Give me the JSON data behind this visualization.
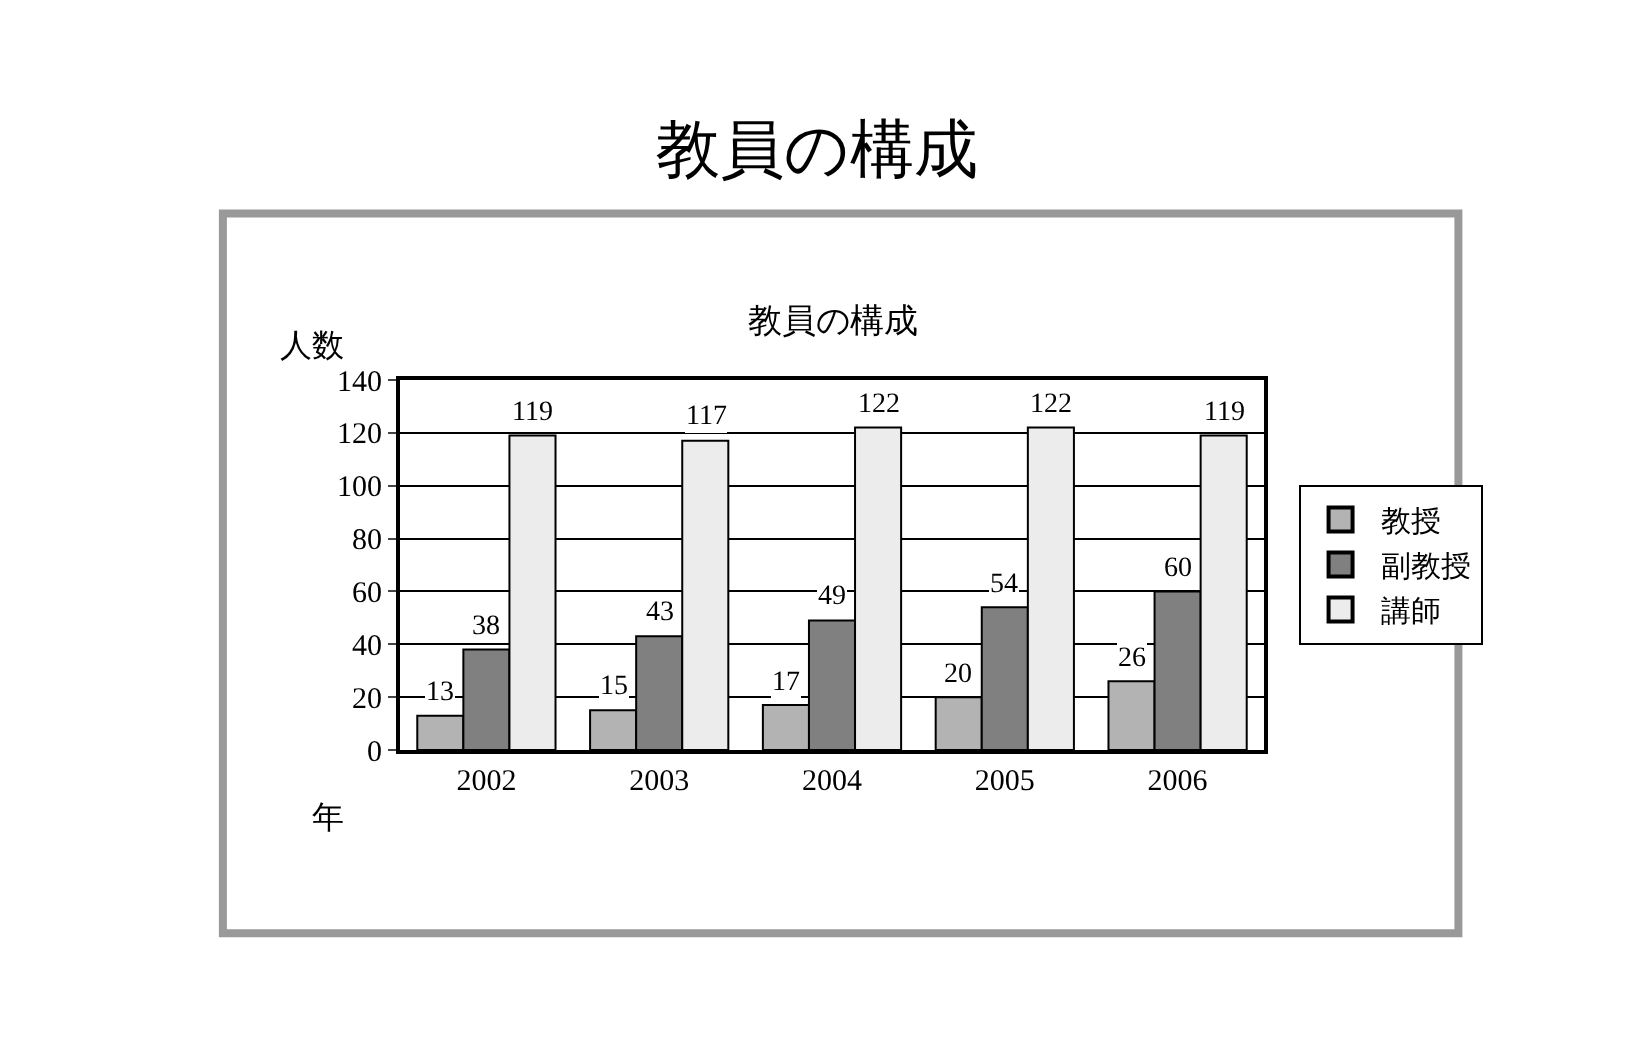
{
  "chart_data": {
    "type": "bar",
    "title": "教員の構成",
    "subtitle": "教員の構成",
    "ylabel": "人数",
    "xlabel": "年",
    "categories": [
      "2002",
      "2003",
      "2004",
      "2005",
      "2006"
    ],
    "series": [
      {
        "name": "教授",
        "color": "#b3b3b3",
        "values": [
          13,
          15,
          17,
          20,
          26
        ]
      },
      {
        "name": "副教授",
        "color": "#808080",
        "values": [
          38,
          43,
          49,
          54,
          60
        ]
      },
      {
        "name": "講師",
        "color": "#ececec",
        "values": [
          119,
          117,
          122,
          122,
          119
        ]
      }
    ],
    "ylim": [
      0,
      140
    ],
    "yticks": [
      0,
      20,
      40,
      60,
      80,
      100,
      120,
      140
    ],
    "grid": "y",
    "legend": "right",
    "data_labels": true
  }
}
